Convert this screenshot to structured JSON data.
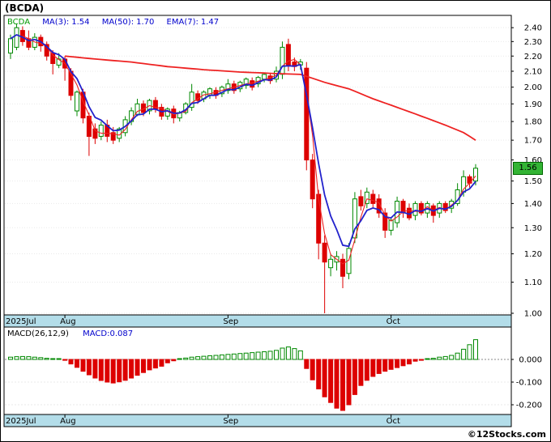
{
  "window_title": "(BCDA)",
  "main_legend": {
    "ticker": "BCDA",
    "ma3_label": "MA(3):",
    "ma3_value": "1.54",
    "ma50_label": "MA(50):",
    "ma50_value": "1.70",
    "ema7_label": "EMA(7):",
    "ema7_value": "1.47"
  },
  "macd_legend": {
    "name": "MACD(26,12,9)",
    "value_label": "MACD:",
    "value": "0.087"
  },
  "price_badge": {
    "value": "1.56",
    "bg": "#33b434",
    "text_color": "#000000"
  },
  "footer": {
    "copyright": "©12Stocks.com"
  },
  "axes": {
    "price_ticks": [
      "2.40",
      "2.30",
      "2.20",
      "2.10",
      "2.00",
      "1.90",
      "1.80",
      "1.70",
      "1.60",
      "1.50",
      "1.40",
      "1.30",
      "1.20",
      "1.10",
      "1.00"
    ],
    "macd_ticks": [
      "0.000",
      "-0.100",
      "-0.200"
    ],
    "month_ticks": [
      {
        "label": "2025Jul",
        "index": 0
      },
      {
        "label": "Aug",
        "index": 9
      },
      {
        "label": "Sep",
        "index": 36
      },
      {
        "label": "Oct",
        "index": 63
      }
    ]
  },
  "colors": {
    "up": "#008800",
    "down": "#dd0000",
    "ma_line": "#ee2222",
    "ema_line": "#2222cc",
    "band": "#b3dde9",
    "grid": "#e9e9e9",
    "zero_line": "#888888",
    "frame": "#000000"
  },
  "chart_data": [
    {
      "type": "candlestick",
      "title": "(BCDA)",
      "yscale": "log",
      "ylim": [
        1.0,
        2.48
      ],
      "x_axis_months": [
        "2025Jul",
        "Aug",
        "Sep",
        "Oct"
      ],
      "last_price": 1.56,
      "ohlc": [
        [
          2.22,
          2.35,
          2.18,
          2.32
        ],
        [
          2.26,
          2.43,
          2.24,
          2.4
        ],
        [
          2.38,
          2.41,
          2.27,
          2.3
        ],
        [
          2.32,
          2.38,
          2.24,
          2.26
        ],
        [
          2.26,
          2.36,
          2.24,
          2.33
        ],
        [
          2.33,
          2.35,
          2.23,
          2.27
        ],
        [
          2.28,
          2.3,
          2.17,
          2.2
        ],
        [
          2.22,
          2.24,
          2.08,
          2.15
        ],
        [
          2.14,
          2.22,
          2.12,
          2.18
        ],
        [
          2.18,
          2.2,
          2.04,
          2.12
        ],
        [
          2.1,
          2.12,
          1.92,
          1.95
        ],
        [
          1.86,
          1.98,
          1.83,
          1.97
        ],
        [
          1.97,
          1.99,
          1.79,
          1.82
        ],
        [
          1.83,
          1.85,
          1.62,
          1.72
        ],
        [
          1.76,
          1.79,
          1.68,
          1.71
        ],
        [
          1.72,
          1.8,
          1.7,
          1.78
        ],
        [
          1.78,
          1.81,
          1.69,
          1.72
        ],
        [
          1.74,
          1.77,
          1.68,
          1.7
        ],
        [
          1.71,
          1.77,
          1.69,
          1.76
        ],
        [
          1.74,
          1.83,
          1.72,
          1.81
        ],
        [
          1.8,
          1.88,
          1.78,
          1.86
        ],
        [
          1.84,
          1.93,
          1.83,
          1.9
        ],
        [
          1.9,
          1.92,
          1.83,
          1.85
        ],
        [
          1.86,
          1.93,
          1.84,
          1.92
        ],
        [
          1.92,
          1.94,
          1.85,
          1.87
        ],
        [
          1.88,
          1.9,
          1.81,
          1.83
        ],
        [
          1.83,
          1.88,
          1.81,
          1.87
        ],
        [
          1.87,
          1.89,
          1.79,
          1.82
        ],
        [
          1.82,
          1.86,
          1.8,
          1.85
        ],
        [
          1.85,
          1.91,
          1.84,
          1.9
        ],
        [
          1.88,
          2.02,
          1.86,
          1.97
        ],
        [
          1.96,
          1.98,
          1.9,
          1.92
        ],
        [
          1.93,
          1.98,
          1.91,
          1.97
        ],
        [
          1.95,
          2.0,
          1.93,
          1.99
        ],
        [
          1.98,
          2.0,
          1.93,
          1.95
        ],
        [
          1.96,
          2.01,
          1.94,
          2.0
        ],
        [
          1.98,
          2.05,
          1.96,
          2.02
        ],
        [
          2.02,
          2.04,
          1.96,
          1.98
        ],
        [
          1.99,
          2.04,
          1.97,
          2.03
        ],
        [
          2.01,
          2.06,
          1.99,
          2.05
        ],
        [
          2.04,
          2.06,
          1.98,
          2.0
        ],
        [
          2.02,
          2.07,
          2.0,
          2.06
        ],
        [
          2.05,
          2.09,
          2.03,
          2.08
        ],
        [
          2.07,
          2.09,
          2.02,
          2.04
        ],
        [
          2.05,
          2.13,
          2.03,
          2.1
        ],
        [
          2.08,
          2.3,
          2.05,
          2.26
        ],
        [
          2.28,
          2.32,
          2.1,
          2.14
        ],
        [
          2.16,
          2.19,
          2.1,
          2.13
        ],
        [
          2.14,
          2.18,
          2.11,
          2.16
        ],
        [
          2.12,
          2.16,
          1.55,
          1.6
        ],
        [
          1.6,
          1.63,
          1.38,
          1.42
        ],
        [
          1.44,
          1.46,
          1.18,
          1.24
        ],
        [
          1.24,
          1.27,
          1.0,
          1.17
        ],
        [
          1.15,
          1.2,
          1.12,
          1.18
        ],
        [
          1.17,
          1.21,
          1.14,
          1.19
        ],
        [
          1.18,
          1.2,
          1.08,
          1.12
        ],
        [
          1.13,
          1.24,
          1.11,
          1.22
        ],
        [
          1.26,
          1.45,
          1.24,
          1.42
        ],
        [
          1.43,
          1.46,
          1.37,
          1.39
        ],
        [
          1.4,
          1.47,
          1.38,
          1.45
        ],
        [
          1.44,
          1.46,
          1.38,
          1.4
        ],
        [
          1.42,
          1.44,
          1.34,
          1.36
        ],
        [
          1.36,
          1.38,
          1.26,
          1.29
        ],
        [
          1.29,
          1.34,
          1.27,
          1.33
        ],
        [
          1.32,
          1.43,
          1.3,
          1.41
        ],
        [
          1.41,
          1.42,
          1.34,
          1.36
        ],
        [
          1.38,
          1.4,
          1.33,
          1.34
        ],
        [
          1.35,
          1.41,
          1.33,
          1.4
        ],
        [
          1.4,
          1.41,
          1.35,
          1.36
        ],
        [
          1.36,
          1.41,
          1.34,
          1.4
        ],
        [
          1.39,
          1.4,
          1.32,
          1.35
        ],
        [
          1.36,
          1.41,
          1.34,
          1.4
        ],
        [
          1.4,
          1.41,
          1.36,
          1.37
        ],
        [
          1.38,
          1.42,
          1.36,
          1.41
        ],
        [
          1.4,
          1.49,
          1.39,
          1.46
        ],
        [
          1.45,
          1.55,
          1.43,
          1.52
        ],
        [
          1.52,
          1.53,
          1.47,
          1.49
        ],
        [
          1.5,
          1.58,
          1.48,
          1.56
        ]
      ],
      "overlays": {
        "ma3_period": 3,
        "ma3_last": 1.54,
        "ema7_period": 7,
        "ema7_last": 1.47,
        "ma50_last": 1.7,
        "ma50_points": [
          [
            9,
            2.2
          ],
          [
            14,
            2.18
          ],
          [
            20,
            2.16
          ],
          [
            26,
            2.13
          ],
          [
            32,
            2.11
          ],
          [
            38,
            2.095
          ],
          [
            44,
            2.085
          ],
          [
            48,
            2.08
          ],
          [
            52,
            2.03
          ],
          [
            56,
            1.99
          ],
          [
            60,
            1.93
          ],
          [
            64,
            1.88
          ],
          [
            68,
            1.83
          ],
          [
            72,
            1.78
          ],
          [
            75,
            1.74
          ],
          [
            77,
            1.7
          ]
        ]
      }
    },
    {
      "type": "bar",
      "title": "MACD(26,12,9)",
      "ylim": [
        -0.25,
        0.14
      ],
      "last_value": 0.087,
      "values": [
        0.01,
        0.012,
        0.013,
        0.012,
        0.01,
        0.008,
        0.005,
        0.002,
        0.0,
        -0.004,
        -0.02,
        -0.035,
        -0.052,
        -0.068,
        -0.082,
        -0.093,
        -0.1,
        -0.104,
        -0.099,
        -0.092,
        -0.082,
        -0.07,
        -0.058,
        -0.046,
        -0.038,
        -0.03,
        -0.015,
        -0.006,
        0.002,
        0.006,
        0.01,
        0.012,
        0.014,
        0.016,
        0.018,
        0.02,
        0.022,
        0.024,
        0.026,
        0.028,
        0.03,
        0.032,
        0.034,
        0.036,
        0.04,
        0.05,
        0.055,
        0.048,
        0.038,
        -0.04,
        -0.09,
        -0.13,
        -0.165,
        -0.19,
        -0.215,
        -0.225,
        -0.2,
        -0.155,
        -0.115,
        -0.092,
        -0.075,
        -0.062,
        -0.052,
        -0.044,
        -0.036,
        -0.028,
        -0.02,
        -0.008,
        -0.004,
        0.002,
        0.005,
        0.01,
        0.013,
        0.018,
        0.028,
        0.045,
        0.065,
        0.087
      ]
    }
  ]
}
